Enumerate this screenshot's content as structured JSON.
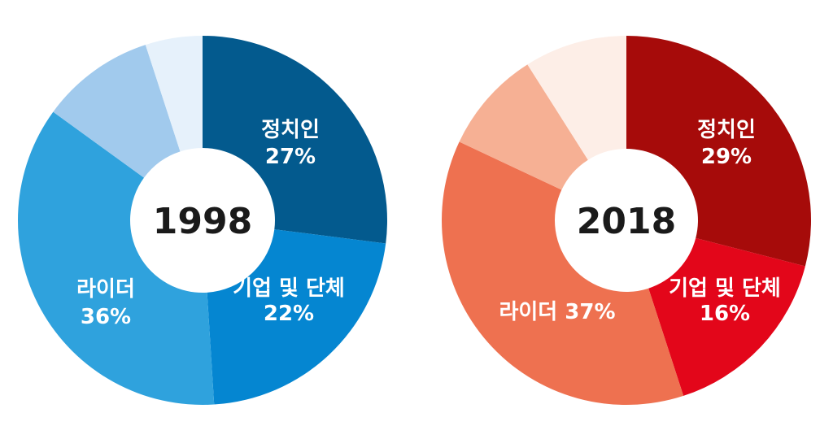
{
  "chart_data": [
    {
      "type": "pie",
      "center_label": "1998",
      "slices": [
        {
          "label": "정치인",
          "value": 27,
          "value_label": "27%",
          "color": "#035a8e"
        },
        {
          "label": "기업 및 단체",
          "value": 22,
          "value_label": "22%",
          "color": "#0586d1"
        },
        {
          "label": "라이더",
          "value": 36,
          "value_label": "36%",
          "color": "#2fa2dd"
        },
        {
          "label": "",
          "value": 10,
          "value_label": "",
          "color": "#a1caed"
        },
        {
          "label": "",
          "value": 5,
          "value_label": "",
          "color": "#e6f1fb"
        }
      ]
    },
    {
      "type": "pie",
      "center_label": "2018",
      "slices": [
        {
          "label": "정치인",
          "value": 29,
          "value_label": "29%",
          "color": "#a60b0a"
        },
        {
          "label": "기업 및 단체",
          "value": 16,
          "value_label": "16%",
          "color": "#e3061a"
        },
        {
          "label": "라이더",
          "value": 37,
          "value_label": "37%",
          "color": "#ee7150"
        },
        {
          "label": "",
          "value": 9,
          "value_label": "",
          "color": "#f6b094"
        },
        {
          "label": "",
          "value": 9,
          "value_label": "",
          "color": "#fdeee7"
        }
      ]
    }
  ]
}
